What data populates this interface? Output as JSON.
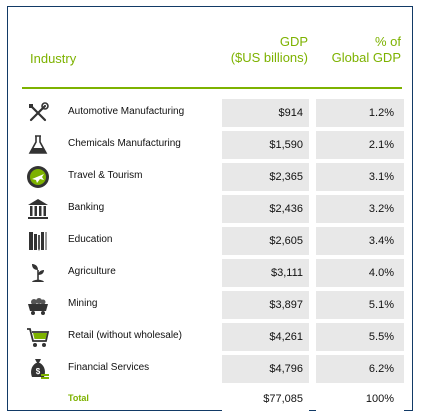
{
  "header": {
    "industry": "Industry",
    "gdp_line1": "GDP",
    "gdp_line2": "($US billions)",
    "pct_line1": "% of",
    "pct_line2": "Global GDP"
  },
  "rows": [
    {
      "label": "Automotive Manufacturing",
      "gdp": "$914",
      "pct": "1.2%",
      "icon": "wrench-screwdriver-icon"
    },
    {
      "label": "Chemicals Manufacturing",
      "gdp": "$1,590",
      "pct": "2.1%",
      "icon": "flask-icon"
    },
    {
      "label": "Travel & Tourism",
      "gdp": "$2,365",
      "pct": "3.1%",
      "icon": "airplane-icon"
    },
    {
      "label": "Banking",
      "gdp": "$2,436",
      "pct": "3.2%",
      "icon": "bank-icon"
    },
    {
      "label": "Education",
      "gdp": "$2,605",
      "pct": "3.4%",
      "icon": "books-pencil-icon"
    },
    {
      "label": "Agriculture",
      "gdp": "$3,111",
      "pct": "4.0%",
      "icon": "sprout-icon"
    },
    {
      "label": "Mining",
      "gdp": "$3,897",
      "pct": "5.1%",
      "icon": "mine-cart-icon"
    },
    {
      "label": "Retail (without wholesale)",
      "gdp": "$4,261",
      "pct": "5.5%",
      "icon": "shopping-cart-icon"
    },
    {
      "label": "Financial Services",
      "gdp": "$4,796",
      "pct": "6.2%",
      "icon": "money-bag-icon"
    }
  ],
  "total": {
    "label": "Total",
    "gdp": "$77,085",
    "pct": "100%"
  },
  "colors": {
    "accent": "#7db200",
    "border": "#123a66",
    "cell": "#e8e8e8"
  }
}
